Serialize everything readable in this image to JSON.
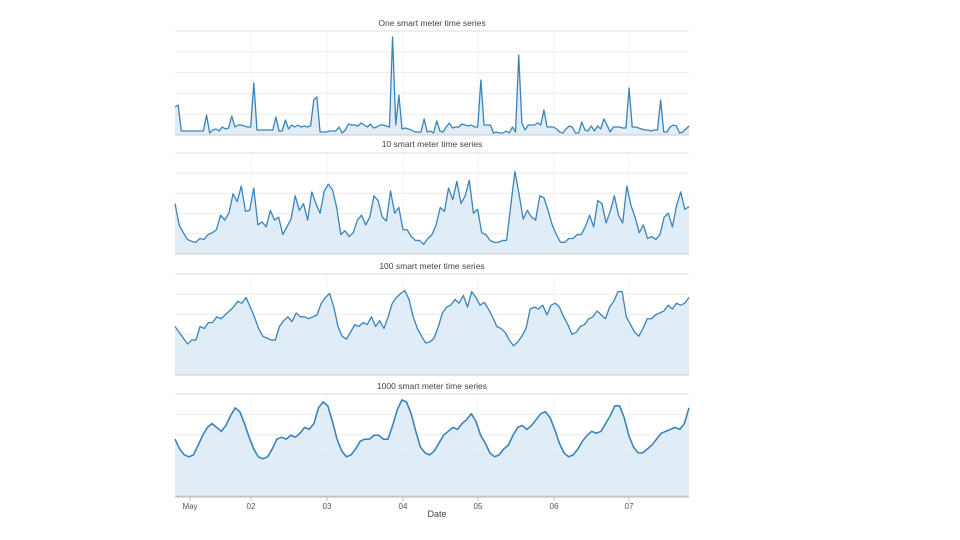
{
  "chart_data": {
    "type": "area",
    "xlabel": "Date",
    "x_tick_labels": [
      "May",
      "02",
      "03",
      "04",
      "05",
      "06",
      "07"
    ],
    "grid": true,
    "colors": {
      "line": "#3b84bb",
      "fill": "#dbe9f4",
      "grid": "#ececec"
    },
    "panels": [
      {
        "title": "One smart meter time series",
        "ylim": [
          0,
          100
        ],
        "values": [
          28,
          30,
          4,
          4,
          4,
          4,
          4,
          4,
          4,
          4,
          20,
          2,
          5,
          6,
          4,
          8,
          6,
          7,
          19,
          8,
          10,
          10,
          9,
          8,
          8,
          52,
          5,
          5,
          5,
          5,
          5,
          5,
          18,
          4,
          4,
          15,
          6,
          10,
          8,
          10,
          8,
          9,
          8,
          9,
          35,
          38,
          3,
          3,
          3,
          4,
          4,
          4,
          8,
          2,
          5,
          11,
          10,
          10,
          9,
          12,
          10,
          8,
          11,
          7,
          8,
          10,
          10,
          9,
          8,
          98,
          10,
          40,
          6,
          7,
          6,
          5,
          3,
          3,
          3,
          16,
          3,
          4,
          2,
          14,
          4,
          3,
          8,
          12,
          7,
          8,
          8,
          11,
          10,
          9,
          10,
          8,
          8,
          55,
          10,
          10,
          10,
          2,
          3,
          2,
          2,
          4,
          2,
          8,
          3,
          80,
          12,
          5,
          10,
          10,
          10,
          12,
          10,
          25,
          8,
          8,
          8,
          6,
          3,
          2,
          6,
          9,
          8,
          2,
          2,
          13,
          5,
          4,
          9,
          4,
          9,
          6,
          16,
          10,
          3,
          8,
          8,
          8,
          7,
          7,
          47,
          8,
          8,
          7,
          6,
          5,
          5,
          4,
          5,
          5,
          35,
          3,
          3,
          8,
          10,
          9,
          2,
          3,
          6,
          9
        ],
        "title_y": 26,
        "top": 31,
        "bottom": 135
      },
      {
        "title": "10 smart meter time series",
        "ylim": [
          0,
          100
        ],
        "values": [
          52,
          30,
          22,
          15,
          13,
          12,
          16,
          15,
          20,
          22,
          25,
          40,
          35,
          42,
          62,
          54,
          70,
          44,
          45,
          68,
          30,
          33,
          28,
          45,
          35,
          38,
          20,
          28,
          36,
          60,
          45,
          52,
          35,
          64,
          52,
          42,
          65,
          72,
          66,
          48,
          20,
          24,
          18,
          22,
          35,
          40,
          30,
          38,
          60,
          55,
          38,
          34,
          65,
          42,
          48,
          25,
          25,
          18,
          14,
          14,
          10,
          16,
          20,
          30,
          48,
          44,
          68,
          56,
          75,
          52,
          60,
          76,
          42,
          46,
          22,
          20,
          14,
          12,
          12,
          14,
          14,
          50,
          85,
          62,
          36,
          45,
          38,
          35,
          60,
          58,
          45,
          30,
          20,
          12,
          12,
          16,
          16,
          20,
          20,
          28,
          40,
          28,
          55,
          52,
          32,
          44,
          60,
          40,
          32,
          70,
          50,
          38,
          22,
          30,
          16,
          18,
          15,
          20,
          38,
          42,
          28,
          50,
          64,
          46,
          49
        ],
        "title_y": 147,
        "top": 153,
        "bottom": 254
      },
      {
        "title": "100 smart meter time series",
        "ylim": [
          0,
          100
        ],
        "values": [
          50,
          44,
          38,
          32,
          36,
          36,
          50,
          48,
          54,
          54,
          60,
          58,
          62,
          66,
          70,
          76,
          74,
          80,
          70,
          60,
          48,
          40,
          38,
          36,
          36,
          50,
          56,
          60,
          55,
          64,
          60,
          60,
          58,
          60,
          62,
          74,
          80,
          84,
          70,
          50,
          40,
          37,
          44,
          52,
          50,
          54,
          52,
          60,
          50,
          56,
          48,
          60,
          74,
          80,
          84,
          87,
          78,
          60,
          48,
          40,
          33,
          34,
          38,
          50,
          64,
          70,
          72,
          78,
          74,
          82,
          70,
          86,
          80,
          72,
          75,
          68,
          60,
          50,
          48,
          44,
          36,
          30,
          34,
          40,
          48,
          68,
          70,
          68,
          72,
          62,
          72,
          74,
          70,
          60,
          52,
          42,
          44,
          50,
          52,
          58,
          60,
          66,
          62,
          58,
          70,
          76,
          86,
          86,
          60,
          52,
          44,
          40,
          48,
          58,
          58,
          62,
          64,
          66,
          72,
          68,
          74,
          72,
          74,
          80
        ],
        "title_y": 269,
        "top": 274,
        "bottom": 375
      },
      {
        "title": "1000 smart meter time series",
        "ylim": [
          0,
          100
        ],
        "values": [
          58,
          48,
          42,
          40,
          42,
          52,
          62,
          70,
          74,
          70,
          66,
          72,
          82,
          90,
          86,
          74,
          60,
          48,
          40,
          38,
          40,
          48,
          58,
          60,
          58,
          62,
          60,
          64,
          70,
          68,
          74,
          90,
          96,
          92,
          76,
          58,
          46,
          40,
          42,
          48,
          56,
          58,
          58,
          62,
          62,
          58,
          58,
          72,
          88,
          98,
          96,
          84,
          66,
          50,
          44,
          42,
          46,
          54,
          62,
          66,
          70,
          68,
          74,
          78,
          84,
          76,
          62,
          54,
          44,
          40,
          42,
          48,
          52,
          62,
          70,
          72,
          68,
          72,
          78,
          84,
          86,
          80,
          68,
          54,
          44,
          40,
          42,
          48,
          56,
          62,
          66,
          64,
          66,
          74,
          82,
          92,
          92,
          80,
          62,
          50,
          44,
          44,
          48,
          52,
          58,
          64,
          66,
          68,
          70,
          68,
          74,
          90
        ],
        "title_y": 389,
        "top": 394,
        "bottom": 496
      }
    ]
  }
}
